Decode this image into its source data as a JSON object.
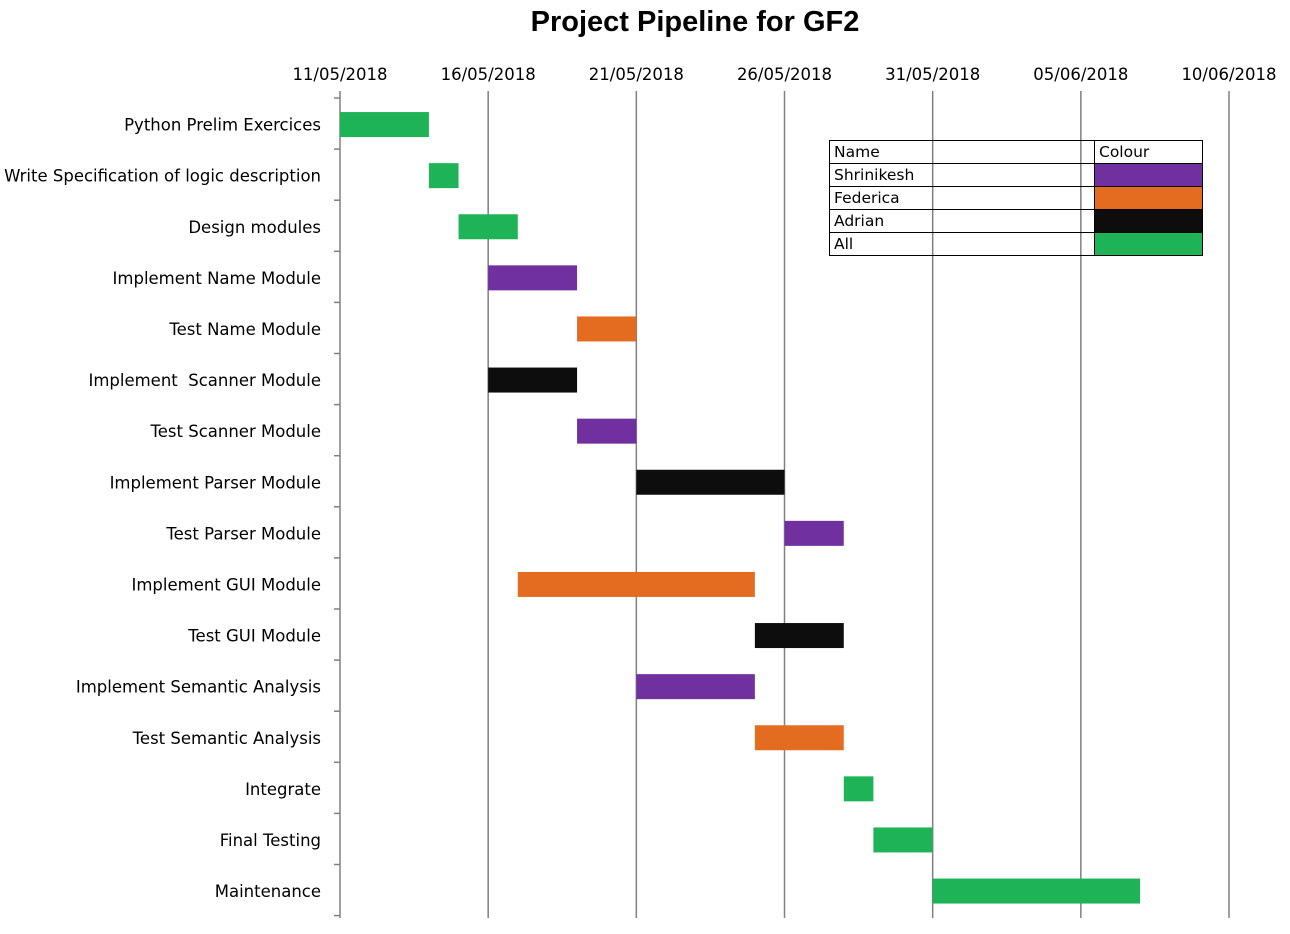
{
  "chart_data": {
    "type": "gantt",
    "title": "Project Pipeline for GF2",
    "x_ticks": [
      "11/05/2018",
      "16/05/2018",
      "21/05/2018",
      "26/05/2018",
      "31/05/2018",
      "05/06/2018",
      "10/06/2018"
    ],
    "xlim": [
      "11/05/2018",
      "10/06/2018"
    ],
    "grid": "vertical",
    "tasks": [
      {
        "name": "Python Prelim Exercices",
        "start": "11/05/2018",
        "end": "14/05/2018",
        "owner": "All"
      },
      {
        "name": "Write Specification of logic description",
        "start": "14/05/2018",
        "end": "15/05/2018",
        "owner": "All"
      },
      {
        "name": "Design modules",
        "start": "15/05/2018",
        "end": "17/05/2018",
        "owner": "All"
      },
      {
        "name": "Implement Name Module",
        "start": "16/05/2018",
        "end": "19/05/2018",
        "owner": "Shrinikesh"
      },
      {
        "name": "Test Name Module",
        "start": "19/05/2018",
        "end": "21/05/2018",
        "owner": "Federica"
      },
      {
        "name": "Implement  Scanner Module",
        "start": "16/05/2018",
        "end": "19/05/2018",
        "owner": "Adrian"
      },
      {
        "name": "Test Scanner Module",
        "start": "19/05/2018",
        "end": "21/05/2018",
        "owner": "Shrinikesh"
      },
      {
        "name": "Implement Parser Module",
        "start": "21/05/2018",
        "end": "26/05/2018",
        "owner": "Adrian"
      },
      {
        "name": "Test Parser Module",
        "start": "26/05/2018",
        "end": "28/05/2018",
        "owner": "Shrinikesh"
      },
      {
        "name": "Implement GUI Module",
        "start": "17/05/2018",
        "end": "25/05/2018",
        "owner": "Federica"
      },
      {
        "name": "Test GUI Module",
        "start": "25/05/2018",
        "end": "28/05/2018",
        "owner": "Adrian"
      },
      {
        "name": "Implement Semantic Analysis",
        "start": "21/05/2018",
        "end": "25/05/2018",
        "owner": "Shrinikesh"
      },
      {
        "name": "Test Semantic Analysis",
        "start": "25/05/2018",
        "end": "28/05/2018",
        "owner": "Federica"
      },
      {
        "name": "Integrate",
        "start": "28/05/2018",
        "end": "29/05/2018",
        "owner": "All"
      },
      {
        "name": "Final Testing",
        "start": "29/05/2018",
        "end": "31/05/2018",
        "owner": "All"
      },
      {
        "name": "Maintenance",
        "start": "31/05/2018",
        "end": "07/06/2018",
        "owner": "All"
      }
    ],
    "legend": {
      "placement": "top-right",
      "header": {
        "name": "Name",
        "colour": "Colour"
      },
      "entries": [
        {
          "name": "Shrinikesh",
          "color": "#7030a0"
        },
        {
          "name": "Federica",
          "color": "#e36c21"
        },
        {
          "name": "Adrian",
          "color": "#0d0d0d"
        },
        {
          "name": "All",
          "color": "#1db356"
        }
      ]
    }
  }
}
